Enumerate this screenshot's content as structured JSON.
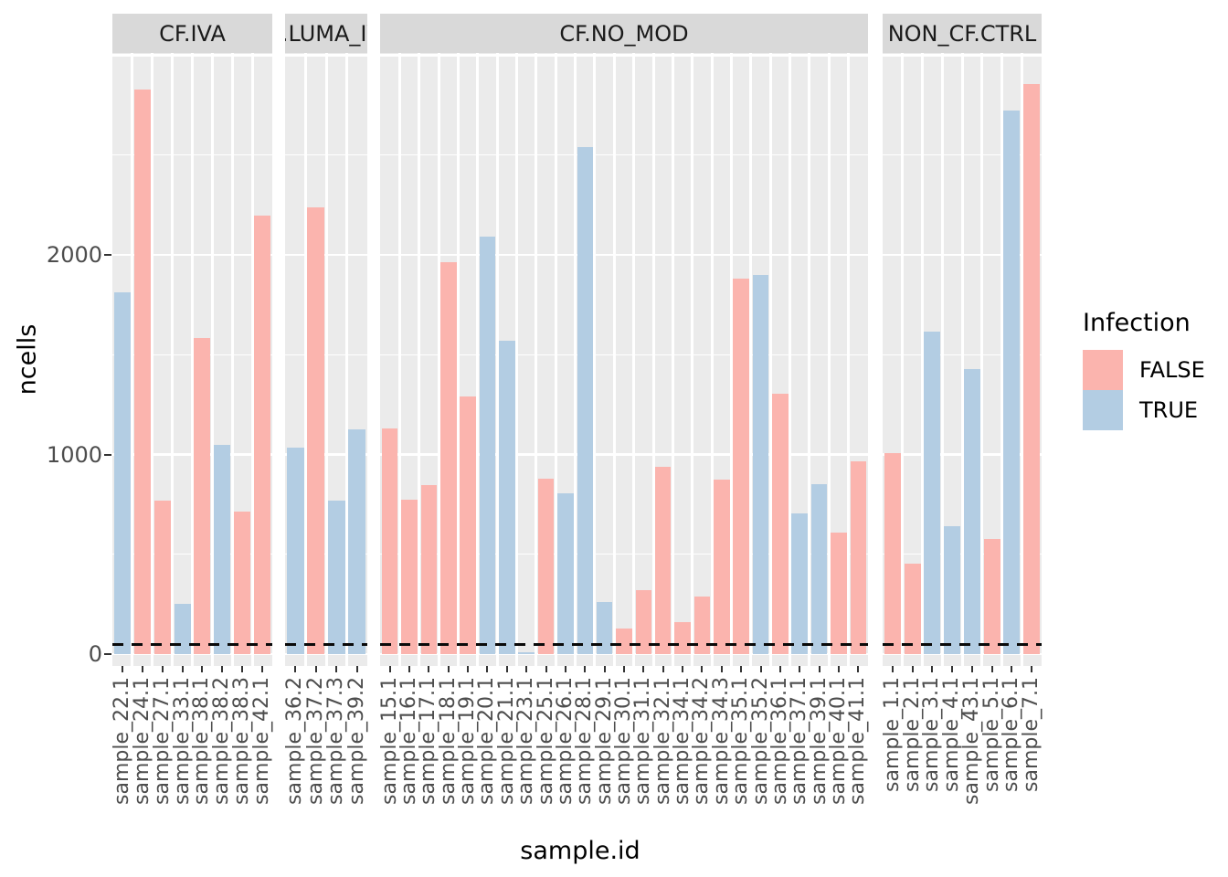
{
  "chart_data": {
    "type": "bar",
    "title": "",
    "xlabel": "sample.id",
    "ylabel": "ncells",
    "grid": true,
    "legend_position": "right",
    "ylim": [
      -60,
      3020
    ],
    "y_ticks": [
      {
        "value": 0,
        "label": "0"
      },
      {
        "value": 1000,
        "label": "1000"
      },
      {
        "value": 2000,
        "label": "2000"
      }
    ],
    "y_minor_ticks": [
      500,
      1500,
      2500,
      3000
    ],
    "threshold_line": {
      "value": 50,
      "style": "dashed",
      "color": "#0a0a0a"
    },
    "legend": {
      "title": "Infection",
      "entries": [
        {
          "label": "FALSE",
          "color": "#FBB4AE"
        },
        {
          "label": "TRUE",
          "color": "#B3CDE3"
        }
      ]
    },
    "colors": {
      "FALSE": "#FBB4AE",
      "TRUE": "#B3CDE3"
    },
    "panel_bg": "#EBEBEB",
    "strip_bg": "#D9D9D9",
    "grid_color": "#FFFFFF",
    "facets": [
      {
        "label": "CF.IVA",
        "bars": [
          {
            "x": "sample_22.1",
            "y": 1812,
            "infection": "TRUE"
          },
          {
            "x": "sample_24.1",
            "y": 2830,
            "infection": "FALSE"
          },
          {
            "x": "sample_27.1",
            "y": 770,
            "infection": "FALSE"
          },
          {
            "x": "sample_33.1",
            "y": 250,
            "infection": "TRUE"
          },
          {
            "x": "sample_38.1",
            "y": 1585,
            "infection": "FALSE"
          },
          {
            "x": "sample_38.2",
            "y": 1050,
            "infection": "TRUE"
          },
          {
            "x": "sample_38.3",
            "y": 715,
            "infection": "FALSE"
          },
          {
            "x": "sample_42.1",
            "y": 2195,
            "infection": "FALSE"
          }
        ]
      },
      {
        "label": "CF.LUMA_IVA",
        "bars": [
          {
            "x": "sample_36.2",
            "y": 1035,
            "infection": "TRUE"
          },
          {
            "x": "sample_37.2",
            "y": 2240,
            "infection": "FALSE"
          },
          {
            "x": "sample_37.3",
            "y": 770,
            "infection": "TRUE"
          },
          {
            "x": "sample_39.2",
            "y": 1125,
            "infection": "TRUE"
          }
        ]
      },
      {
        "label": "CF.NO_MOD",
        "bars": [
          {
            "x": "sample_15.1",
            "y": 1130,
            "infection": "FALSE"
          },
          {
            "x": "sample_16.1",
            "y": 775,
            "infection": "FALSE"
          },
          {
            "x": "sample_17.1",
            "y": 845,
            "infection": "FALSE"
          },
          {
            "x": "sample_18.1",
            "y": 1965,
            "infection": "FALSE"
          },
          {
            "x": "sample_19.1",
            "y": 1290,
            "infection": "FALSE"
          },
          {
            "x": "sample_20.1",
            "y": 2090,
            "infection": "TRUE"
          },
          {
            "x": "sample_21.1",
            "y": 1570,
            "infection": "TRUE"
          },
          {
            "x": "sample_23.1",
            "y": 10,
            "infection": "TRUE"
          },
          {
            "x": "sample_25.1",
            "y": 880,
            "infection": "FALSE"
          },
          {
            "x": "sample_26.1",
            "y": 805,
            "infection": "TRUE"
          },
          {
            "x": "sample_28.1",
            "y": 2540,
            "infection": "TRUE"
          },
          {
            "x": "sample_29.1",
            "y": 260,
            "infection": "TRUE"
          },
          {
            "x": "sample_30.1",
            "y": 130,
            "infection": "FALSE"
          },
          {
            "x": "sample_31.1",
            "y": 320,
            "infection": "FALSE"
          },
          {
            "x": "sample_32.1",
            "y": 940,
            "infection": "FALSE"
          },
          {
            "x": "sample_34.1",
            "y": 160,
            "infection": "FALSE"
          },
          {
            "x": "sample_34.2",
            "y": 290,
            "infection": "FALSE"
          },
          {
            "x": "sample_34.3",
            "y": 875,
            "infection": "FALSE"
          },
          {
            "x": "sample_35.1",
            "y": 1880,
            "infection": "FALSE"
          },
          {
            "x": "sample_35.2",
            "y": 1900,
            "infection": "TRUE"
          },
          {
            "x": "sample_36.1",
            "y": 1305,
            "infection": "FALSE"
          },
          {
            "x": "sample_37.1",
            "y": 705,
            "infection": "TRUE"
          },
          {
            "x": "sample_39.1",
            "y": 850,
            "infection": "TRUE"
          },
          {
            "x": "sample_40.1",
            "y": 610,
            "infection": "FALSE"
          },
          {
            "x": "sample_41.1",
            "y": 965,
            "infection": "FALSE"
          }
        ]
      },
      {
        "label": "NON_CF.CTRL",
        "bars": [
          {
            "x": "sample_1.1",
            "y": 1005,
            "infection": "FALSE"
          },
          {
            "x": "sample_2.1",
            "y": 455,
            "infection": "FALSE"
          },
          {
            "x": "sample_3.1",
            "y": 1615,
            "infection": "TRUE"
          },
          {
            "x": "sample_4.1",
            "y": 640,
            "infection": "TRUE"
          },
          {
            "x": "sample_43.1",
            "y": 1430,
            "infection": "TRUE"
          },
          {
            "x": "sample_5.1",
            "y": 575,
            "infection": "FALSE"
          },
          {
            "x": "sample_6.1",
            "y": 2725,
            "infection": "TRUE"
          },
          {
            "x": "sample_7.1",
            "y": 2855,
            "infection": "FALSE"
          }
        ]
      }
    ]
  }
}
